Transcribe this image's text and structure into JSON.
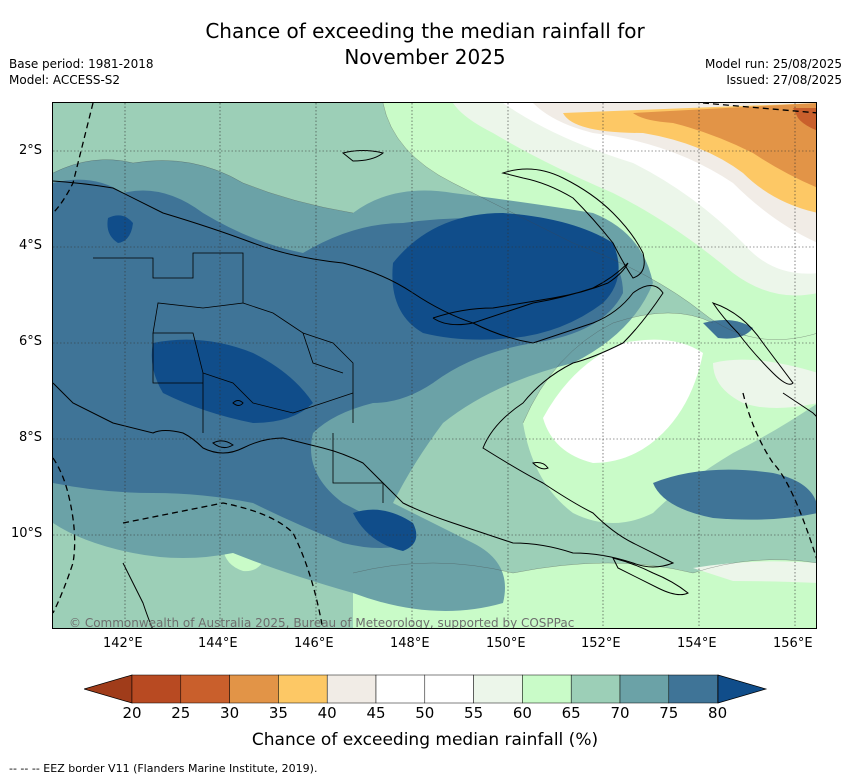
{
  "header": {
    "title_line1": "Chance of exceeding the median rainfall for",
    "title_line2": "November 2025",
    "base_period": "Base period: 1981-2018",
    "model": "Model: ACCESS-S2",
    "model_run": "Model run: 25/08/2025",
    "issued": "Issued: 27/08/2025"
  },
  "map": {
    "lat_labels": [
      "2°S",
      "4°S",
      "6°S",
      "8°S",
      "10°S"
    ],
    "lon_labels": [
      "142°E",
      "144°E",
      "146°E",
      "148°E",
      "150°E",
      "152°E",
      "154°E",
      "156°E"
    ],
    "copyright": "© Commonwealth of Australia 2025, Bureau of Meteorology, supported by COSPPac",
    "extent": {
      "lon": [
        140.5,
        156.5
      ],
      "lat": [
        -12.0,
        -1.0
      ]
    },
    "grid": true
  },
  "colorbar": {
    "ticks": [
      "20",
      "25",
      "30",
      "35",
      "40",
      "45",
      "50",
      "55",
      "60",
      "65",
      "70",
      "75",
      "80"
    ],
    "colors": [
      "#a03c1a",
      "#b84a22",
      "#c95f2c",
      "#e29447",
      "#fdc865",
      "#f1ece6",
      "#ffffff",
      "#ffffff",
      "#ecf6ea",
      "#c9fbc8",
      "#9ccfb7",
      "#6ba2a7",
      "#3f7497",
      "#104d8a"
    ],
    "label": "Chance of exceeding median rainfall (%)"
  },
  "footer": {
    "legend_text": "--  --  -- EEZ border V11 (Flanders Marine Institute, 2019)."
  }
}
